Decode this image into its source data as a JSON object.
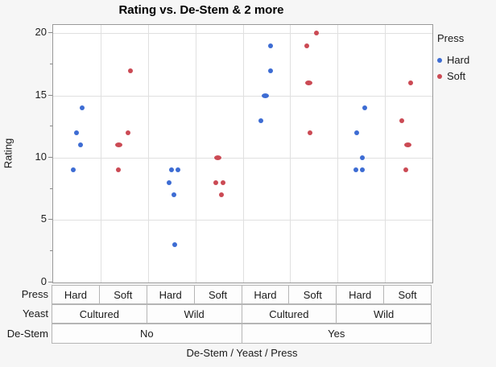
{
  "title": "Rating vs. De-Stem & 2 more",
  "y_axis": {
    "label": "Rating",
    "major_ticks": [
      0,
      5,
      10,
      15,
      20
    ],
    "minor_ticks": [
      2.5,
      7.5,
      12.5,
      17.5
    ]
  },
  "x_axis": {
    "caption": "De-Stem / Yeast / Press"
  },
  "legend": {
    "title": "Press",
    "items": [
      {
        "label": "Hard",
        "color": "#3d6cd3"
      },
      {
        "label": "Soft",
        "color": "#cb4a54"
      }
    ]
  },
  "axis_table": {
    "rows": [
      {
        "label": "Press",
        "cells": [
          {
            "text": "Hard",
            "span": 1
          },
          {
            "text": "Soft",
            "span": 1
          },
          {
            "text": "Hard",
            "span": 1
          },
          {
            "text": "Soft",
            "span": 1
          },
          {
            "text": "Hard",
            "span": 1
          },
          {
            "text": "Soft",
            "span": 1
          },
          {
            "text": "Hard",
            "span": 1
          },
          {
            "text": "Soft",
            "span": 1
          }
        ]
      },
      {
        "label": "Yeast",
        "cells": [
          {
            "text": "Cultured",
            "span": 2
          },
          {
            "text": "Wild",
            "span": 2
          },
          {
            "text": "Cultured",
            "span": 2
          },
          {
            "text": "Wild",
            "span": 2
          }
        ]
      },
      {
        "label": "De-Stem",
        "cells": [
          {
            "text": "No",
            "span": 4
          },
          {
            "text": "Yes",
            "span": 4
          }
        ]
      }
    ]
  },
  "chart_data": {
    "type": "scatter",
    "title": "Rating vs. De-Stem & 2 more",
    "ylabel": "Rating",
    "xlabel": "De-Stem / Yeast / Press",
    "ylim": [
      0,
      20.7
    ],
    "yticks": [
      0,
      5,
      10,
      15,
      20
    ],
    "grid": true,
    "legend_title": "Press",
    "legend_position": "right",
    "series_colors": {
      "Hard": "#3d6cd3",
      "Soft": "#cb4a54"
    },
    "groups": [
      {
        "de_stem": "No",
        "yeast": "Cultured",
        "press": "Hard",
        "ratings": [
          14,
          12,
          11,
          9
        ]
      },
      {
        "de_stem": "No",
        "yeast": "Cultured",
        "press": "Soft",
        "ratings": [
          17,
          12,
          11,
          11,
          9
        ]
      },
      {
        "de_stem": "No",
        "yeast": "Wild",
        "press": "Hard",
        "ratings": [
          9,
          9,
          8,
          7,
          3
        ]
      },
      {
        "de_stem": "No",
        "yeast": "Wild",
        "press": "Soft",
        "ratings": [
          10,
          10,
          8,
          8,
          7
        ]
      },
      {
        "de_stem": "Yes",
        "yeast": "Cultured",
        "press": "Hard",
        "ratings": [
          19,
          17,
          15,
          15,
          13
        ]
      },
      {
        "de_stem": "Yes",
        "yeast": "Cultured",
        "press": "Soft",
        "ratings": [
          20,
          19,
          16,
          16,
          12
        ]
      },
      {
        "de_stem": "Yes",
        "yeast": "Wild",
        "press": "Hard",
        "ratings": [
          14,
          12,
          10,
          9,
          9
        ]
      },
      {
        "de_stem": "Yes",
        "yeast": "Wild",
        "press": "Soft",
        "ratings": [
          16,
          13,
          11,
          11,
          9
        ]
      }
    ],
    "points": [
      {
        "col": 0,
        "series": "Hard",
        "r": 14,
        "dx": 6.6
      },
      {
        "col": 0,
        "series": "Hard",
        "r": 12,
        "dx": -0.4
      },
      {
        "col": 0,
        "series": "Hard",
        "r": 11,
        "dx": 4.6
      },
      {
        "col": 0,
        "series": "Hard",
        "r": 9,
        "dx": -4.4
      },
      {
        "col": 1,
        "series": "Soft",
        "r": 17,
        "dx": 7.7
      },
      {
        "col": 1,
        "series": "Soft",
        "r": 12,
        "dx": 4.7
      },
      {
        "col": 1,
        "series": "Soft",
        "r": 11,
        "dx": -7.3,
        "wide": true
      },
      {
        "col": 1,
        "series": "Soft",
        "r": 9,
        "dx": -7.3
      },
      {
        "col": 2,
        "series": "Hard",
        "r": 9,
        "dx": -0.5
      },
      {
        "col": 2,
        "series": "Hard",
        "r": 9,
        "dx": 7.5
      },
      {
        "col": 2,
        "series": "Hard",
        "r": 8,
        "dx": -3.5
      },
      {
        "col": 2,
        "series": "Hard",
        "r": 7,
        "dx": 2.5
      },
      {
        "col": 2,
        "series": "Hard",
        "r": 3,
        "dx": 3.5
      },
      {
        "col": 3,
        "series": "Soft",
        "r": 10,
        "dx": -2,
        "wide": true
      },
      {
        "col": 3,
        "series": "Soft",
        "r": 8,
        "dx": -4
      },
      {
        "col": 3,
        "series": "Soft",
        "r": 8,
        "dx": 5
      },
      {
        "col": 3,
        "series": "Soft",
        "r": 7,
        "dx": 3
      },
      {
        "col": 4,
        "series": "Hard",
        "r": 19,
        "dx": 5
      },
      {
        "col": 4,
        "series": "Hard",
        "r": 17,
        "dx": 5
      },
      {
        "col": 4,
        "series": "Hard",
        "r": 15,
        "dx": -1,
        "wide": true
      },
      {
        "col": 4,
        "series": "Hard",
        "r": 13,
        "dx": -7
      },
      {
        "col": 5,
        "series": "Soft",
        "r": 20,
        "dx": 3.5
      },
      {
        "col": 5,
        "series": "Soft",
        "r": 19,
        "dx": -8.5
      },
      {
        "col": 5,
        "series": "Soft",
        "r": 16,
        "dx": -6.5,
        "wide": true
      },
      {
        "col": 5,
        "series": "Soft",
        "r": 12,
        "dx": -4.5
      },
      {
        "col": 6,
        "series": "Hard",
        "r": 14,
        "dx": 4.5
      },
      {
        "col": 6,
        "series": "Hard",
        "r": 12,
        "dx": -5.5
      },
      {
        "col": 6,
        "series": "Hard",
        "r": 10,
        "dx": 1.5
      },
      {
        "col": 6,
        "series": "Hard",
        "r": 9,
        "dx": -6.5
      },
      {
        "col": 6,
        "series": "Hard",
        "r": 9,
        "dx": 1.5
      },
      {
        "col": 7,
        "series": "Soft",
        "r": 16,
        "dx": 2.5
      },
      {
        "col": 7,
        "series": "Soft",
        "r": 13,
        "dx": -8.5
      },
      {
        "col": 7,
        "series": "Soft",
        "r": 11,
        "dx": -1.5,
        "wide": true
      },
      {
        "col": 7,
        "series": "Soft",
        "r": 9,
        "dx": -3.5
      }
    ]
  }
}
